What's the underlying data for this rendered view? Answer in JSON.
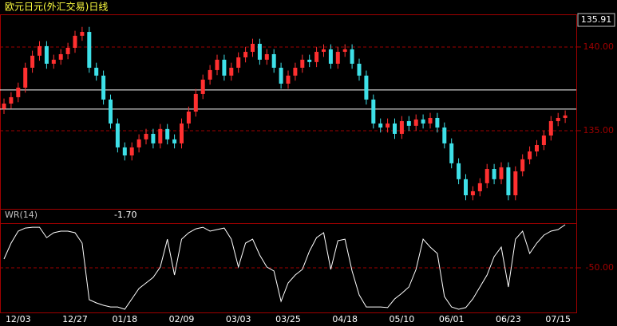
{
  "chart_data": [
    {
      "type": "candlestick",
      "title": "欧元日元(外汇交易)日线",
      "categories": [
        null,
        null,
        "12/03",
        null,
        null,
        null,
        null,
        null,
        null,
        null,
        "12/27",
        null,
        null,
        null,
        null,
        null,
        null,
        "01/18",
        null,
        null,
        null,
        null,
        null,
        null,
        null,
        "02/09",
        null,
        null,
        null,
        null,
        null,
        null,
        null,
        "03/03",
        null,
        null,
        null,
        null,
        null,
        null,
        "03/25",
        null,
        null,
        null,
        null,
        null,
        null,
        null,
        "04/18",
        null,
        null,
        null,
        null,
        null,
        null,
        null,
        "05/10",
        null,
        null,
        null,
        null,
        null,
        null,
        "06/01",
        null,
        null,
        null,
        null,
        null,
        null,
        null,
        "06/23",
        null,
        null,
        null,
        null,
        null,
        null,
        "07/15",
        null
      ],
      "open": [
        136.3,
        136.62,
        137.0,
        137.57,
        138.76,
        139.48,
        140.05,
        139.0,
        139.24,
        139.57,
        139.95,
        140.67,
        140.9,
        138.76,
        138.29,
        136.86,
        135.43,
        134.0,
        133.52,
        134.0,
        134.48,
        134.81,
        134.24,
        135.1,
        134.48,
        134.24,
        135.43,
        136.14,
        137.19,
        138.05,
        138.62,
        139.24,
        138.29,
        138.76,
        139.38,
        139.71,
        140.19,
        139.24,
        139.57,
        138.76,
        137.81,
        138.29,
        138.76,
        139.24,
        139.1,
        139.71,
        139.86,
        139.0,
        139.71,
        139.86,
        139.0,
        138.29,
        136.86,
        135.43,
        135.19,
        135.43,
        134.81,
        135.57,
        135.29,
        135.67,
        135.43,
        135.76,
        135.19,
        134.24,
        133.05,
        132.1,
        131.14,
        131.38,
        131.86,
        132.71,
        132.1,
        132.81,
        131.14,
        132.57,
        133.29,
        133.76,
        134.14,
        134.71,
        135.57,
        135.76
      ],
      "high": [
        136.92,
        137.3,
        137.87,
        139.06,
        139.78,
        140.35,
        140.35,
        139.54,
        139.87,
        140.25,
        140.97,
        141.2,
        141.2,
        139.06,
        138.59,
        137.16,
        135.73,
        134.3,
        134.3,
        134.78,
        135.11,
        135.11,
        135.4,
        135.4,
        134.78,
        135.73,
        136.44,
        137.49,
        138.35,
        138.92,
        139.54,
        139.54,
        139.06,
        139.68,
        140.01,
        140.49,
        140.49,
        139.87,
        139.87,
        139.06,
        138.59,
        139.06,
        139.54,
        139.54,
        140.01,
        140.16,
        140.16,
        140.01,
        140.16,
        140.16,
        139.3,
        138.59,
        137.16,
        135.73,
        135.73,
        135.73,
        135.87,
        135.87,
        135.97,
        135.97,
        136.06,
        136.06,
        135.49,
        134.54,
        133.35,
        132.4,
        131.68,
        132.16,
        133.01,
        133.01,
        133.11,
        133.11,
        132.87,
        133.59,
        134.06,
        134.44,
        135.01,
        135.87,
        136.06,
        136.21
      ],
      "low": [
        136.0,
        136.32,
        136.7,
        137.27,
        138.46,
        139.18,
        138.7,
        138.7,
        138.94,
        139.27,
        139.65,
        140.37,
        138.46,
        137.99,
        136.56,
        135.13,
        133.7,
        133.22,
        133.22,
        133.7,
        134.18,
        133.94,
        133.94,
        134.18,
        133.94,
        133.94,
        135.13,
        135.84,
        136.89,
        137.75,
        138.32,
        137.99,
        137.99,
        138.46,
        139.08,
        139.41,
        138.94,
        138.94,
        138.46,
        137.51,
        137.51,
        137.99,
        138.46,
        138.8,
        138.8,
        139.41,
        138.7,
        138.7,
        139.41,
        138.7,
        137.99,
        136.56,
        135.13,
        134.89,
        134.89,
        134.51,
        134.51,
        134.99,
        134.99,
        135.13,
        135.13,
        134.89,
        133.94,
        132.75,
        131.8,
        130.84,
        130.84,
        131.08,
        131.56,
        131.8,
        131.8,
        130.84,
        130.84,
        132.27,
        132.99,
        133.46,
        133.84,
        134.41,
        135.27,
        135.46
      ],
      "close": [
        136.62,
        137.0,
        137.57,
        138.76,
        139.48,
        140.05,
        139.0,
        139.24,
        139.57,
        139.95,
        140.67,
        140.9,
        138.76,
        138.29,
        136.86,
        135.43,
        134.0,
        133.52,
        134.0,
        134.48,
        134.81,
        134.24,
        135.1,
        134.48,
        134.24,
        135.43,
        136.14,
        137.19,
        138.05,
        138.62,
        139.24,
        138.29,
        138.76,
        139.38,
        139.71,
        140.19,
        139.24,
        139.57,
        138.76,
        137.81,
        138.29,
        138.76,
        139.24,
        139.1,
        139.71,
        139.86,
        139.0,
        139.71,
        139.86,
        139.0,
        138.29,
        136.86,
        135.43,
        135.19,
        135.43,
        134.81,
        135.57,
        135.29,
        135.67,
        135.43,
        135.76,
        135.19,
        134.24,
        133.05,
        132.1,
        131.14,
        131.38,
        131.86,
        132.71,
        132.1,
        132.81,
        131.14,
        132.57,
        133.29,
        133.76,
        134.14,
        134.71,
        135.57,
        135.76,
        135.91
      ],
      "up_color": "#ff3030",
      "down_color": "#3ee0e8",
      "ylim": [
        130.33,
        141.95
      ],
      "yticks": [
        {
          "value": 135,
          "label": "135.00"
        },
        {
          "value": 140,
          "label": "140.00"
        }
      ],
      "hlines": [
        137.43,
        136.29
      ],
      "hline_color": "#ffffff",
      "grid": true
    },
    {
      "type": "line",
      "title": "WR(14)",
      "color": "#ffffff",
      "values": [
        -40.2,
        -22.3,
        -8.9,
        -5.4,
        -4.5,
        -4.5,
        -16.1,
        -10.7,
        -8.9,
        -8.9,
        -10.7,
        -22.3,
        -85.7,
        -89.3,
        -92.0,
        -93.8,
        -93.8,
        -96.4,
        -84.8,
        -73.2,
        -67.0,
        -60.7,
        -49.1,
        -17.9,
        -58.0,
        -17.9,
        -10.7,
        -6.3,
        -4.5,
        -8.9,
        -7.1,
        -5.4,
        -17.9,
        -49.1,
        -22.3,
        -17.9,
        -35.7,
        -49.1,
        -53.6,
        -87.5,
        -67.0,
        -58.0,
        -51.8,
        -31.3,
        -16.1,
        -10.7,
        -51.8,
        -19.6,
        -17.9,
        -53.6,
        -80.4,
        -93.8,
        -93.8,
        -93.8,
        -94.6,
        -84.8,
        -78.6,
        -71.4,
        -51.8,
        -17.9,
        -26.8,
        -33.9,
        -82.1,
        -93.8,
        -96.4,
        -94.6,
        -84.8,
        -71.4,
        -58.0,
        -37.5,
        -26.8,
        -71.4,
        -17.9,
        -8.9,
        -33.9,
        -22.3,
        -13.4,
        -8.9,
        -7.1,
        -1.7
      ],
      "value_labels": [
        null,
        null,
        null,
        null,
        null,
        null,
        null,
        null,
        null,
        null,
        null,
        null,
        null,
        null,
        null,
        null,
        null,
        null,
        null,
        null,
        null,
        null,
        null,
        null,
        null,
        null,
        null,
        null,
        null,
        null,
        null,
        null,
        null,
        null,
        null,
        null,
        null,
        null,
        null,
        null,
        null,
        null,
        null,
        null,
        null,
        null,
        null,
        null,
        null,
        null,
        null,
        null,
        null,
        null,
        null,
        null,
        null,
        null,
        null,
        null,
        null,
        null,
        null,
        null,
        null,
        null,
        null,
        null,
        null,
        null,
        null,
        null,
        null,
        null,
        null,
        null,
        null,
        null,
        null,
        "-1.70"
      ],
      "ylim": [
        -100.9,
        16.1
      ],
      "yticks": [
        {
          "value": -50,
          "label": "-50.00"
        }
      ],
      "grid": true
    }
  ]
}
